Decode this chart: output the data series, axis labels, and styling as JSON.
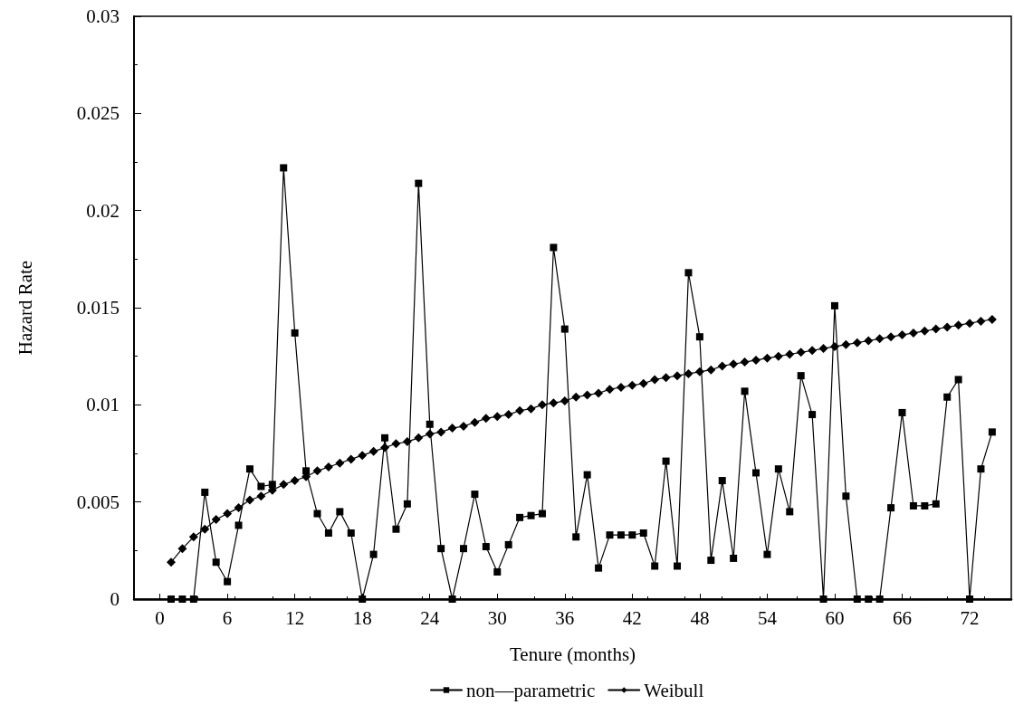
{
  "chart_data": {
    "type": "line",
    "xlabel": "Tenure (months)",
    "ylabel": "Hazard Rate",
    "x": [
      1,
      2,
      3,
      4,
      5,
      6,
      7,
      8,
      9,
      10,
      11,
      12,
      13,
      14,
      15,
      16,
      17,
      18,
      19,
      20,
      21,
      22,
      23,
      24,
      25,
      26,
      27,
      28,
      29,
      30,
      31,
      32,
      33,
      34,
      35,
      36,
      37,
      38,
      39,
      40,
      41,
      42,
      43,
      44,
      45,
      46,
      47,
      48,
      49,
      50,
      51,
      52,
      53,
      54,
      55,
      56,
      57,
      58,
      59,
      60,
      61,
      62,
      63,
      64,
      65,
      66,
      67,
      68,
      69,
      70,
      71,
      72,
      73,
      74
    ],
    "series": [
      {
        "name": "non—parametric",
        "color": "#000000",
        "marker": "square",
        "values": [
          0,
          0,
          0,
          0.0055,
          0.0019,
          0.0009,
          0.0038,
          0.0067,
          0.0058,
          0.0059,
          0.0222,
          0.0137,
          0.0066,
          0.0044,
          0.0034,
          0.0045,
          0.0034,
          0,
          0.0023,
          0.0083,
          0.0036,
          0.0049,
          0.0214,
          0.009,
          0.0026,
          0,
          0.0026,
          0.0054,
          0.0027,
          0.0014,
          0.0028,
          0.0042,
          0.0043,
          0.0044,
          0.0181,
          0.0139,
          0.0032,
          0.0064,
          0.0016,
          0.0033,
          0.0033,
          0.0033,
          0.0034,
          0.0017,
          0.0071,
          0.0017,
          0.0168,
          0.0135,
          0.002,
          0.0061,
          0.0021,
          0.0107,
          0.0065,
          0.0023,
          0.0067,
          0.0045,
          0.0115,
          0.0095,
          0,
          0.0151,
          0.0053,
          0,
          0,
          0,
          0.0047,
          0.0096,
          0.0048,
          0.0048,
          0.0049,
          0.0104,
          0.0113,
          0,
          0.0067,
          0.0086
        ]
      },
      {
        "name": "Weibull",
        "color": "#000000",
        "marker": "diamond",
        "values": [
          0.0019,
          0.0026,
          0.0032,
          0.0036,
          0.0041,
          0.0044,
          0.0047,
          0.0051,
          0.0053,
          0.0056,
          0.0059,
          0.0061,
          0.0063,
          0.0066,
          0.0068,
          0.007,
          0.0072,
          0.0074,
          0.0076,
          0.0078,
          0.008,
          0.0081,
          0.0083,
          0.0085,
          0.0086,
          0.0088,
          0.0089,
          0.0091,
          0.0093,
          0.0094,
          0.0095,
          0.0097,
          0.0098,
          0.01,
          0.0101,
          0.0102,
          0.0104,
          0.0105,
          0.0106,
          0.0108,
          0.0109,
          0.011,
          0.0111,
          0.0113,
          0.0114,
          0.0115,
          0.0116,
          0.0117,
          0.0118,
          0.012,
          0.0121,
          0.0122,
          0.0123,
          0.0124,
          0.0125,
          0.0126,
          0.0127,
          0.0128,
          0.0129,
          0.013,
          0.0131,
          0.0132,
          0.0133,
          0.0134,
          0.0135,
          0.0136,
          0.0137,
          0.0138,
          0.0139,
          0.014,
          0.0141,
          0.0142,
          0.0143,
          0.0144
        ]
      }
    ],
    "xlim": [
      -2.3,
      75.7
    ],
    "xticks": [
      0,
      6,
      12,
      18,
      24,
      30,
      36,
      42,
      48,
      54,
      60,
      66,
      72
    ],
    "ylim": [
      0,
      0.03
    ],
    "yticks": [
      0,
      0.005,
      0.01,
      0.015,
      0.02,
      0.025,
      0.03
    ],
    "grid": false,
    "legend": "bottom",
    "line_style": "solid"
  }
}
